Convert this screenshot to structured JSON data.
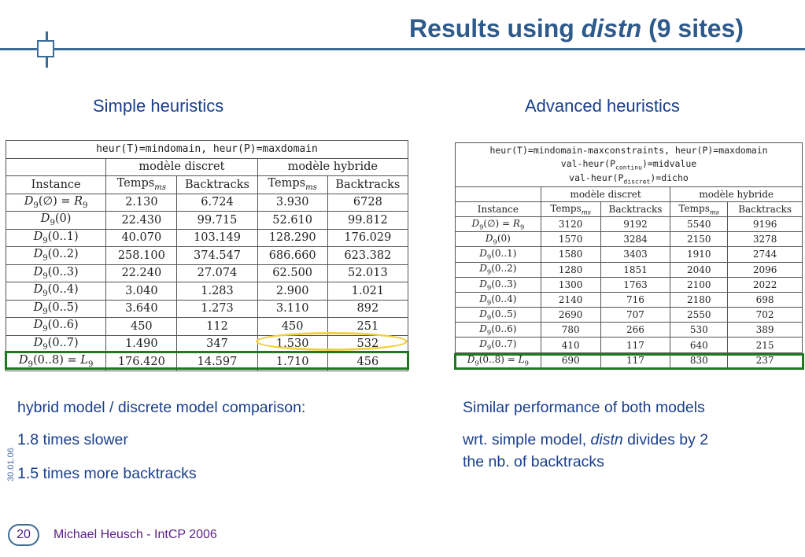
{
  "header": {
    "title_prefix": "Results using ",
    "title_emph": "distn",
    "title_suffix": " (9 sites)"
  },
  "left": {
    "heading": "Simple heuristics",
    "table": {
      "caption": "heur(T)=mindomain, heur(P)=maxdomain",
      "group_discrete": "modèle discret",
      "group_hybrid": "modèle hybride",
      "col_instance": "Instance",
      "col_temps": "Temps",
      "col_temps_sub": "ms",
      "col_backtracks": "Backtracks",
      "rows": [
        {
          "inst": "D9(∅) = R9",
          "t1": "2.130",
          "b1": "6.724",
          "t2": "3.930",
          "b2": "6728"
        },
        {
          "inst": "D9(0)",
          "t1": "22.430",
          "b1": "99.715",
          "t2": "52.610",
          "b2": "99.812"
        },
        {
          "inst": "D9(0..1)",
          "t1": "40.070",
          "b1": "103.149",
          "t2": "128.290",
          "b2": "176.029"
        },
        {
          "inst": "D9(0..2)",
          "t1": "258.100",
          "b1": "374.547",
          "t2": "686.660",
          "b2": "623.382"
        },
        {
          "inst": "D9(0..3)",
          "t1": "22.240",
          "b1": "27.074",
          "t2": "62.500",
          "b2": "52.013"
        },
        {
          "inst": "D9(0..4)",
          "t1": "3.040",
          "b1": "1.283",
          "t2": "2.900",
          "b2": "1.021"
        },
        {
          "inst": "D9(0..5)",
          "t1": "3.640",
          "b1": "1.273",
          "t2": "3.110",
          "b2": "892"
        },
        {
          "inst": "D9(0..6)",
          "t1": "450",
          "b1": "112",
          "t2": "450",
          "b2": "251"
        },
        {
          "inst": "D9(0..7)",
          "t1": "1.490",
          "b1": "347",
          "t2": "1.530",
          "b2": "532"
        },
        {
          "inst": "D9(0..8) = L9",
          "t1": "176.420",
          "b1": "14.597",
          "t2": "1.710",
          "b2": "456"
        }
      ]
    },
    "notes": [
      "hybrid model / discrete model comparison:",
      "1.8 times slower",
      "1.5 times more backtracks"
    ]
  },
  "right": {
    "heading": "Advanced heuristics",
    "table": {
      "caption_line1": "heur(T)=mindomain-maxconstraints, heur(P)=maxdomain",
      "caption_line2_a": "val-heur(P",
      "caption_line2_sub": "continu",
      "caption_line2_b": ")=midvalue",
      "caption_line3_a": "val-heur(P",
      "caption_line3_sub": "discret",
      "caption_line3_b": ")=dicho",
      "group_discrete": "modèle discret",
      "group_hybrid": "modèle hybride",
      "col_instance": "Instance",
      "col_temps": "Temps",
      "col_temps_sub": "ms",
      "col_backtracks": "Backtracks",
      "rows": [
        {
          "inst": "D9(∅) = R9",
          "t1": "3120",
          "b1": "9192",
          "t2": "5540",
          "b2": "9196"
        },
        {
          "inst": "D9(0)",
          "t1": "1570",
          "b1": "3284",
          "t2": "2150",
          "b2": "3278"
        },
        {
          "inst": "D9(0..1)",
          "t1": "1580",
          "b1": "3403",
          "t2": "1910",
          "b2": "2744"
        },
        {
          "inst": "D9(0..2)",
          "t1": "1280",
          "b1": "1851",
          "t2": "2040",
          "b2": "2096"
        },
        {
          "inst": "D9(0..3)",
          "t1": "1300",
          "b1": "1763",
          "t2": "2100",
          "b2": "2022"
        },
        {
          "inst": "D9(0..4)",
          "t1": "2140",
          "b1": "716",
          "t2": "2180",
          "b2": "698"
        },
        {
          "inst": "D9(0..5)",
          "t1": "2690",
          "b1": "707",
          "t2": "2550",
          "b2": "702"
        },
        {
          "inst": "D9(0..6)",
          "t1": "780",
          "b1": "266",
          "t2": "530",
          "b2": "389"
        },
        {
          "inst": "D9(0..7)",
          "t1": "410",
          "b1": "117",
          "t2": "640",
          "b2": "215"
        },
        {
          "inst": "D9(0..8) = L9",
          "t1": "690",
          "b1": "117",
          "t2": "830",
          "b2": "237"
        }
      ]
    },
    "notes": [
      "Similar performance of both models"
    ],
    "note2_a": "wrt. simple model, ",
    "note2_emph": "distn",
    "note2_b": " divides by 2",
    "note3": "the nb. of backtracks"
  },
  "footer": {
    "date": "30.01.06",
    "page": "20",
    "author": "Michael Heusch - IntCP 2006"
  },
  "colors": {
    "title": "#2e5a8c",
    "text": "#1a3f8c",
    "highlight_row": "#1f7a1f",
    "highlight_cell": "#f0d040",
    "footer": "#5a1f8a"
  }
}
